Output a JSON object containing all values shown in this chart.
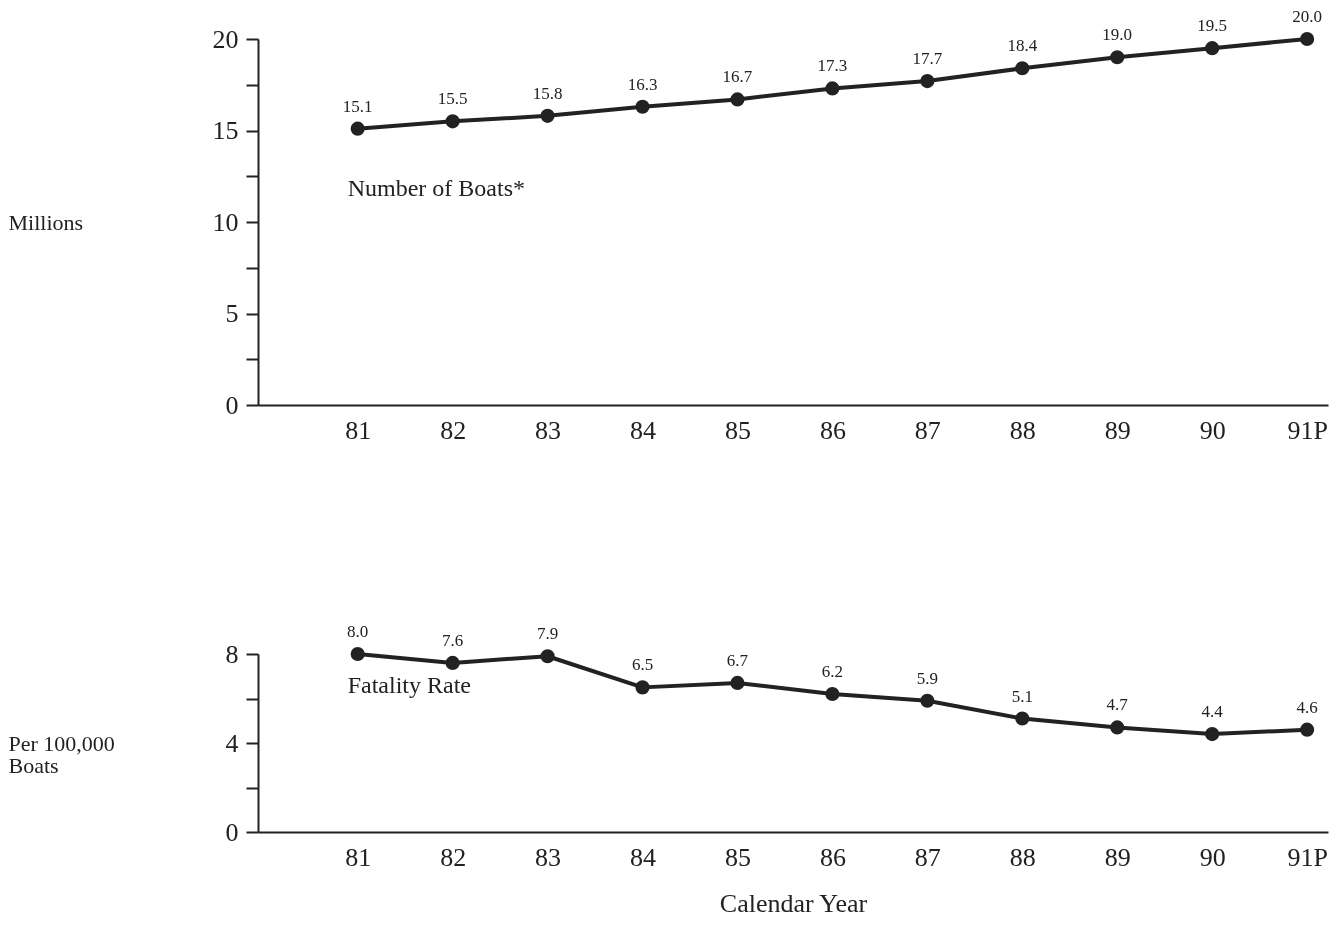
{
  "chart_data": [
    {
      "type": "line",
      "categories": [
        "81",
        "82",
        "83",
        "84",
        "85",
        "86",
        "87",
        "88",
        "89",
        "90",
        "91P"
      ],
      "ylabel": "Millions",
      "series": [
        {
          "name": "Number of Boats*",
          "color": "#222222",
          "values": [
            15.1,
            15.5,
            15.8,
            16.3,
            16.7,
            17.3,
            17.7,
            18.4,
            19.0,
            19.5,
            20.0
          ],
          "value_labels": [
            "15.1",
            "15.5",
            "15.8",
            "16.3",
            "16.7",
            "17.3",
            "17.7",
            "18.4",
            "19.0",
            "19.5",
            "20.0"
          ]
        }
      ],
      "ylim": [
        0,
        20
      ],
      "yticks": [
        0,
        {
          "value": 2.5,
          "label": null
        },
        5,
        {
          "value": 7.5,
          "label": null
        },
        10,
        {
          "value": 12.5,
          "label": null
        },
        15,
        {
          "value": 17.5,
          "label": null
        },
        20
      ],
      "marker": "circle",
      "line_style": "solid"
    },
    {
      "type": "line",
      "categories": [
        "81",
        "82",
        "83",
        "84",
        "85",
        "86",
        "87",
        "88",
        "89",
        "90",
        "91P"
      ],
      "ylabel": "Per 100,000\nBoats",
      "xlabel": "Calendar Year",
      "series": [
        {
          "name": "Fatality Rate",
          "color": "#222222",
          "values": [
            8.0,
            7.6,
            7.9,
            6.5,
            6.7,
            6.2,
            5.9,
            5.1,
            4.7,
            4.4,
            4.6
          ],
          "value_labels": [
            "8.0",
            "7.6",
            "7.9",
            "6.5",
            "6.7",
            "6.2",
            "5.9",
            "5.1",
            "4.7",
            "4.4",
            "4.6"
          ]
        }
      ],
      "ylim": [
        0,
        8
      ],
      "yticks": [
        0,
        {
          "value": 2,
          "label": null
        },
        4,
        {
          "value": 6,
          "label": null
        },
        8
      ],
      "marker": "circle",
      "line_style": "solid"
    }
  ]
}
